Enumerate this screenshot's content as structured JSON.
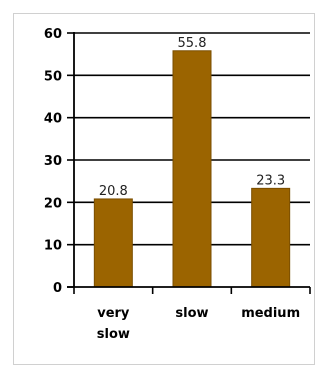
{
  "chart_data": {
    "type": "bar",
    "title": "",
    "xlabel": "",
    "ylabel": "",
    "categories": [
      [
        "very",
        "slow"
      ],
      [
        "slow"
      ],
      [
        "medium"
      ]
    ],
    "values": [
      20.8,
      55.8,
      23.3
    ],
    "data_labels": [
      "20.8",
      "55.8",
      "23.3"
    ],
    "ylim": [
      0,
      60
    ],
    "yticks": [
      0,
      10,
      20,
      30,
      40,
      50,
      60
    ],
    "grid": true,
    "legend": "none",
    "bar_color": "#9b6400",
    "bar_edge_color": "#7a4e00"
  }
}
